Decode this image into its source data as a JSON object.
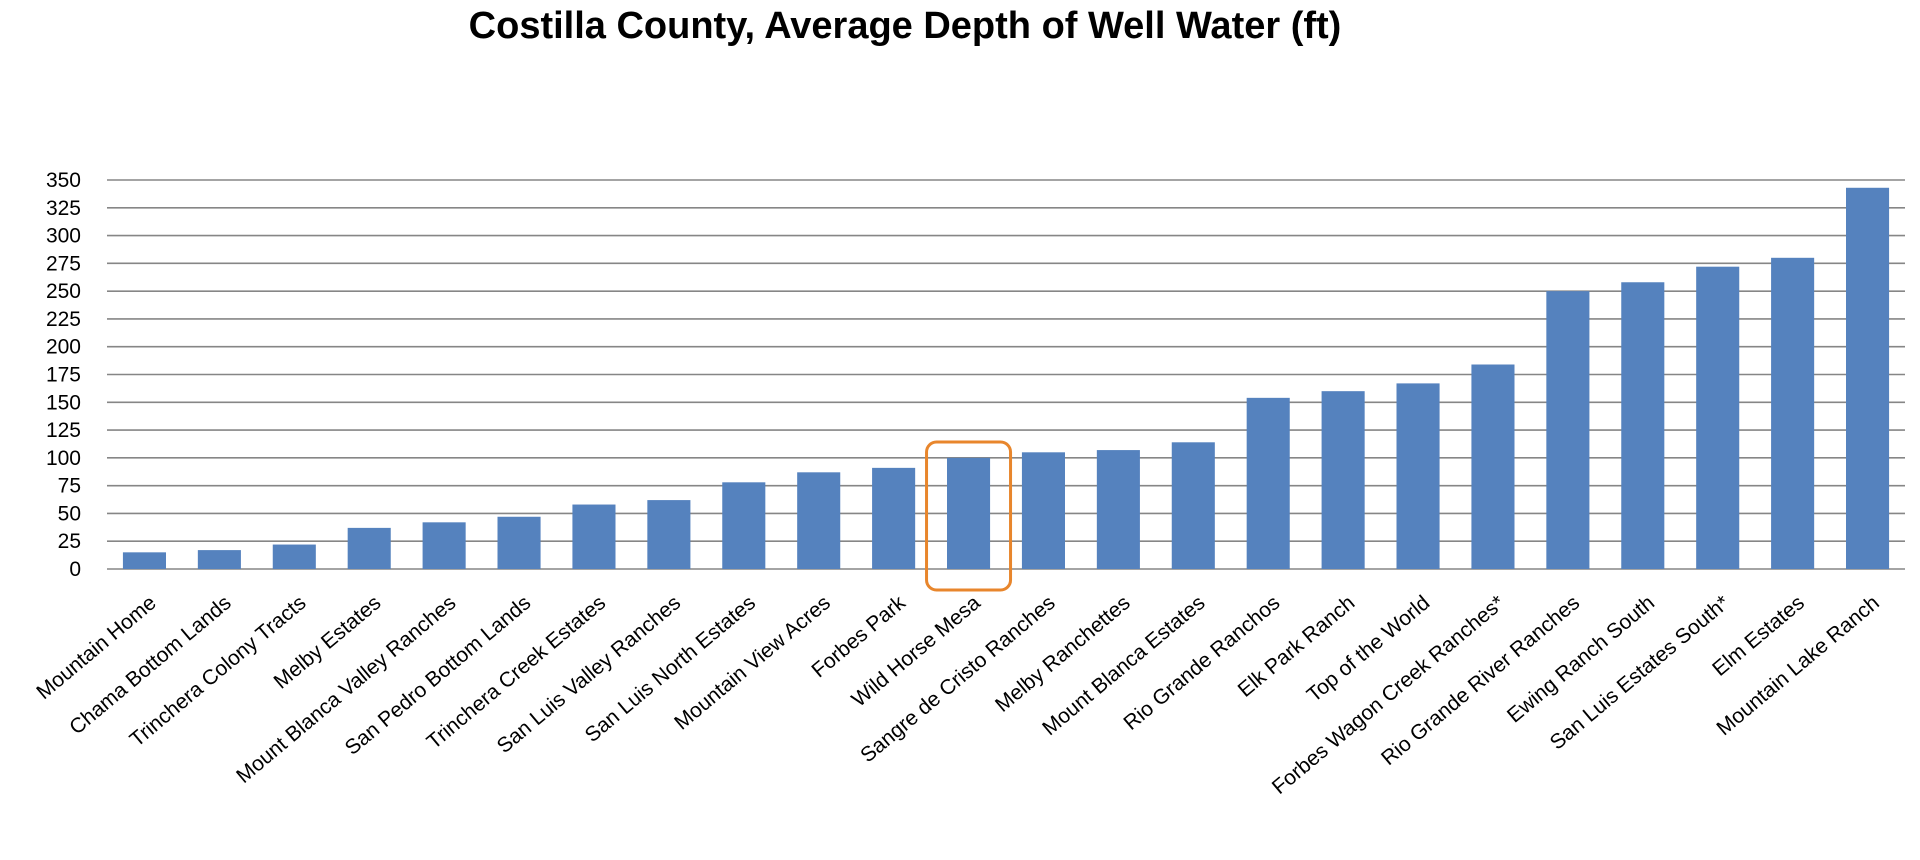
{
  "chart_data": {
    "type": "bar",
    "title": "Costilla County, Average Depth of Well Water (ft)",
    "xlabel": "",
    "ylabel": "",
    "ylim": [
      0,
      350
    ],
    "yticks": [
      0,
      25,
      50,
      75,
      100,
      125,
      150,
      175,
      200,
      225,
      250,
      275,
      300,
      325,
      350
    ],
    "grid": true,
    "legend": "none",
    "bar_color": "#5582BE",
    "grid_color": "#868686",
    "highlight_color": "#E8862C",
    "highlight_category": "Wild Horse Mesa",
    "categories": [
      "Mountain Home",
      "Chama Bottom Lands",
      "Trinchera Colony Tracts",
      "Melby Estates",
      "Mount Blanca Valley Ranches",
      "San Pedro Bottom Lands",
      "Trinchera Creek Estates",
      "San Luis Valley Ranches",
      "San Luis North Estates",
      "Mountain View Acres",
      "Forbes Park",
      "Wild Horse Mesa",
      "Sangre de Cristo Ranches",
      "Melby Ranchettes",
      "Mount Blanca Estates",
      "Rio Grande Ranchos",
      "Elk Park Ranch",
      "Top of the World",
      "Forbes Wagon Creek Ranches*",
      "Rio Grande River Ranches",
      "Ewing Ranch South",
      "San Luis Estates South*",
      "Elm Estates",
      "Mountain Lake Ranch"
    ],
    "values": [
      15,
      17,
      22,
      37,
      42,
      47,
      58,
      62,
      78,
      87,
      91,
      100,
      105,
      107,
      114,
      154,
      160,
      167,
      184,
      250,
      258,
      272,
      280,
      343
    ]
  }
}
